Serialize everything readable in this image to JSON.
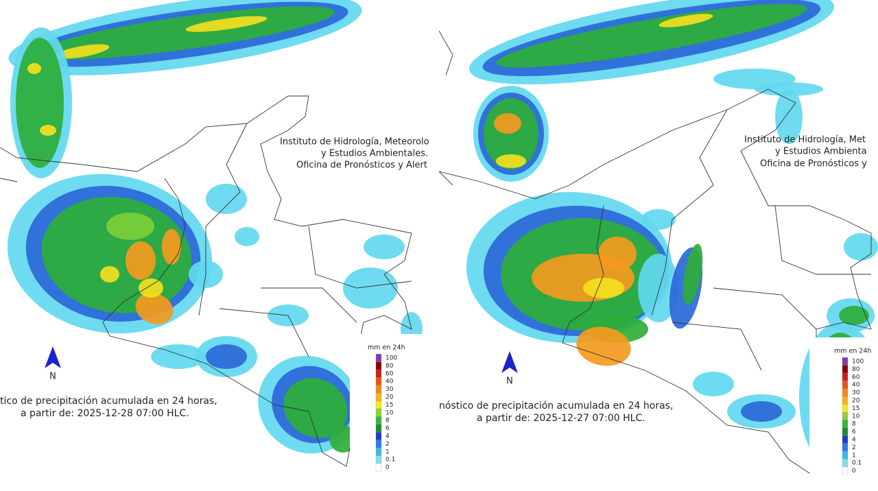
{
  "panels": [
    {
      "institute": [
        "Instituto de Hidrología, Meteorolo",
        "y Estudios Ambientales.",
        "Oficina de Pronósticos y Alert"
      ],
      "north": "N",
      "caption": [
        "tico de precipitación acumulada en 24 horas,",
        "a partir de: 2025-12-28 07:00 HLC."
      ],
      "legend": {
        "title": "mm en 24h",
        "labels": [
          "100",
          "80",
          "60",
          "40",
          "30",
          "20",
          "15",
          "10",
          "8",
          "6",
          "4",
          "2",
          "1",
          "0.1",
          "0"
        ],
        "colors": [
          "#7b3fb0",
          "#8b0000",
          "#c81e1e",
          "#e8541e",
          "#f08a1e",
          "#f5b21e",
          "#f2e81e",
          "#8fd13a",
          "#3cb43c",
          "#1e8c2e",
          "#1e3cc8",
          "#2a7de1",
          "#3fb8e8",
          "#7fe0f0",
          "#ffffff"
        ]
      }
    },
    {
      "institute": [
        "Instituto de Hidrología, Met",
        "y Estudios Ambienta",
        "Oficina de Pronósticos y"
      ],
      "north": "N",
      "caption": [
        "nóstico de precipitación acumulada en 24 horas,",
        "a partir de: 2025-12-27 07:00 HLC."
      ],
      "legend": {
        "title": "mm en 24h",
        "labels": [
          "100",
          "80",
          "60",
          "40",
          "30",
          "20",
          "15",
          "10",
          "8",
          "6",
          "4",
          "2",
          "1",
          "0.1",
          "0"
        ],
        "colors": [
          "#7b3fb0",
          "#8b0000",
          "#c81e1e",
          "#e8541e",
          "#f08a1e",
          "#f5b21e",
          "#f2e81e",
          "#8fd13a",
          "#3cb43c",
          "#1e8c2e",
          "#1e3cc8",
          "#2a7de1",
          "#3fb8e8",
          "#7fe0f0",
          "#ffffff"
        ]
      }
    }
  ]
}
